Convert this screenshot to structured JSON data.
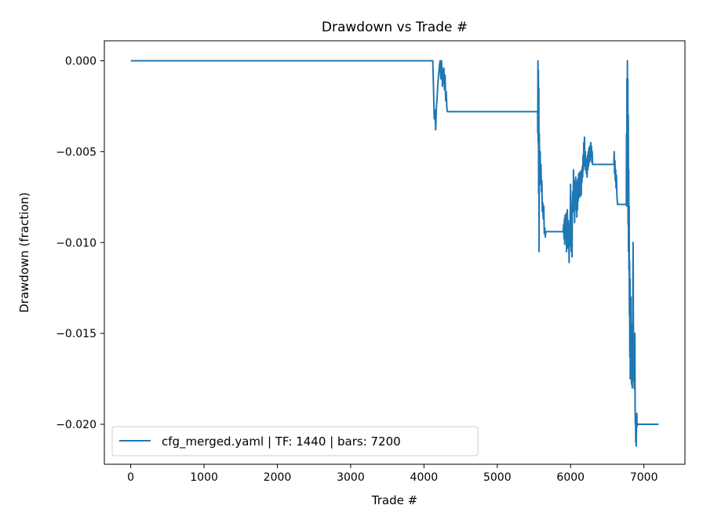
{
  "chart_data": {
    "type": "line",
    "title": "Drawdown vs Trade #",
    "xlabel": "Trade #",
    "ylabel": "Drawdown (fraction)",
    "xlim": [
      -360,
      7560
    ],
    "ylim": [
      -0.0222,
      0.0011
    ],
    "x_ticks": [
      0,
      1000,
      2000,
      3000,
      4000,
      5000,
      6000,
      7000
    ],
    "x_tick_labels": [
      "0",
      "1000",
      "2000",
      "3000",
      "4000",
      "5000",
      "6000",
      "7000"
    ],
    "y_ticks": [
      0.0,
      -0.005,
      -0.01,
      -0.015,
      -0.02
    ],
    "y_tick_labels": [
      "0.000",
      "−0.005",
      "−0.010",
      "−0.015",
      "−0.020"
    ],
    "grid": false,
    "legend_position": "lower-left",
    "series": [
      {
        "name": "cfg_merged.yaml | TF: 1440 | bars: 7200",
        "color": "#1f77b4",
        "points": [
          [
            0,
            0.0
          ],
          [
            4120,
            0.0
          ],
          [
            4130,
            -0.0015
          ],
          [
            4140,
            -0.0032
          ],
          [
            4150,
            -0.0027
          ],
          [
            4160,
            -0.0038
          ],
          [
            4170,
            -0.0025
          ],
          [
            4180,
            -0.002
          ],
          [
            4190,
            -0.0012
          ],
          [
            4200,
            -0.0008
          ],
          [
            4210,
            -0.0003
          ],
          [
            4220,
            0.0
          ],
          [
            4225,
            -0.0006
          ],
          [
            4232,
            -0.001
          ],
          [
            4238,
            0.0
          ],
          [
            4245,
            -0.0004
          ],
          [
            4252,
            -0.0014
          ],
          [
            4258,
            -0.0005
          ],
          [
            4265,
            -0.0012
          ],
          [
            4272,
            -0.0004
          ],
          [
            4280,
            -0.0016
          ],
          [
            4288,
            -0.0008
          ],
          [
            4296,
            -0.0022
          ],
          [
            4304,
            -0.0017
          ],
          [
            4312,
            -0.0026
          ],
          [
            4320,
            -0.0028
          ],
          [
            5550,
            -0.0028
          ],
          [
            5552,
            -0.004
          ],
          [
            5555,
            0.0
          ],
          [
            5558,
            -0.0045
          ],
          [
            5561,
            -0.0005
          ],
          [
            5564,
            -0.0073
          ],
          [
            5567,
            -0.0015
          ],
          [
            5570,
            -0.0105
          ],
          [
            5573,
            -0.004
          ],
          [
            5576,
            -0.0055
          ],
          [
            5580,
            -0.0068
          ],
          [
            5585,
            -0.005
          ],
          [
            5590,
            -0.0065
          ],
          [
            5596,
            -0.0057
          ],
          [
            5602,
            -0.0072
          ],
          [
            5608,
            -0.0066
          ],
          [
            5614,
            -0.0083
          ],
          [
            5620,
            -0.0078
          ],
          [
            5627,
            -0.0087
          ],
          [
            5634,
            -0.008
          ],
          [
            5641,
            -0.0095
          ],
          [
            5648,
            -0.0092
          ],
          [
            5655,
            -0.0097
          ],
          [
            5662,
            -0.0094
          ],
          [
            5900,
            -0.0094
          ],
          [
            5905,
            -0.009
          ],
          [
            5910,
            -0.0098
          ],
          [
            5915,
            -0.0087
          ],
          [
            5920,
            -0.0101
          ],
          [
            5925,
            -0.0085
          ],
          [
            5930,
            -0.0093
          ],
          [
            5935,
            -0.0095
          ],
          [
            5940,
            -0.0084
          ],
          [
            5945,
            -0.0105
          ],
          [
            5950,
            -0.0097
          ],
          [
            5955,
            -0.0082
          ],
          [
            5960,
            -0.009
          ],
          [
            5965,
            -0.0103
          ],
          [
            5970,
            -0.0088
          ],
          [
            5975,
            -0.0096
          ],
          [
            5980,
            -0.0111
          ],
          [
            5985,
            -0.0094
          ],
          [
            5990,
            -0.0102
          ],
          [
            5995,
            -0.0085
          ],
          [
            6000,
            -0.0068
          ],
          [
            6005,
            -0.009
          ],
          [
            6010,
            -0.0105
          ],
          [
            6015,
            -0.008
          ],
          [
            6020,
            -0.0108
          ],
          [
            6025,
            -0.0078
          ],
          [
            6030,
            -0.0072
          ],
          [
            6035,
            -0.0083
          ],
          [
            6040,
            -0.006
          ],
          [
            6045,
            -0.0081
          ],
          [
            6050,
            -0.0066
          ],
          [
            6055,
            -0.0089
          ],
          [
            6060,
            -0.007
          ],
          [
            6065,
            -0.0082
          ],
          [
            6070,
            -0.0064
          ],
          [
            6075,
            -0.008
          ],
          [
            6080,
            -0.0073
          ],
          [
            6085,
            -0.0086
          ],
          [
            6090,
            -0.0066
          ],
          [
            6095,
            -0.0082
          ],
          [
            6100,
            -0.0065
          ],
          [
            6105,
            -0.0077
          ],
          [
            6110,
            -0.0062
          ],
          [
            6115,
            -0.0072
          ],
          [
            6120,
            -0.0066
          ],
          [
            6125,
            -0.0075
          ],
          [
            6130,
            -0.0061
          ],
          [
            6135,
            -0.007
          ],
          [
            6140,
            -0.0065
          ],
          [
            6145,
            -0.0074
          ],
          [
            6150,
            -0.006
          ],
          [
            6155,
            -0.0067
          ],
          [
            6160,
            -0.0058
          ],
          [
            6165,
            -0.0064
          ],
          [
            6170,
            -0.0052
          ],
          [
            6175,
            -0.006
          ],
          [
            6180,
            -0.0045
          ],
          [
            6185,
            -0.0055
          ],
          [
            6190,
            -0.0042
          ],
          [
            6195,
            -0.0058
          ],
          [
            6200,
            -0.005
          ],
          [
            6205,
            -0.006
          ],
          [
            6210,
            -0.0054
          ],
          [
            6215,
            -0.0062
          ],
          [
            6220,
            -0.0055
          ],
          [
            6225,
            -0.0064
          ],
          [
            6230,
            -0.0052
          ],
          [
            6235,
            -0.006
          ],
          [
            6240,
            -0.005
          ],
          [
            6245,
            -0.0058
          ],
          [
            6250,
            -0.0048
          ],
          [
            6255,
            -0.0056
          ],
          [
            6260,
            -0.0047
          ],
          [
            6265,
            -0.0055
          ],
          [
            6270,
            -0.0049
          ],
          [
            6275,
            -0.0045
          ],
          [
            6280,
            -0.0052
          ],
          [
            6285,
            -0.0047
          ],
          [
            6290,
            -0.0056
          ],
          [
            6295,
            -0.005
          ],
          [
            6300,
            -0.0057
          ],
          [
            6590,
            -0.0057
          ],
          [
            6595,
            -0.005
          ],
          [
            6600,
            -0.0062
          ],
          [
            6605,
            -0.0055
          ],
          [
            6610,
            -0.0066
          ],
          [
            6615,
            -0.006
          ],
          [
            6620,
            -0.007
          ],
          [
            6625,
            -0.0063
          ],
          [
            6632,
            -0.0074
          ],
          [
            6640,
            -0.0079
          ],
          [
            6760,
            -0.0079
          ],
          [
            6763,
            -0.004
          ],
          [
            6766,
            -0.008
          ],
          [
            6769,
            -0.001
          ],
          [
            6772,
            -0.006
          ],
          [
            6775,
            0.0
          ],
          [
            6778,
            -0.005
          ],
          [
            6781,
            -0.001
          ],
          [
            6784,
            -0.009
          ],
          [
            6787,
            -0.003
          ],
          [
            6790,
            -0.0105
          ],
          [
            6793,
            -0.006
          ],
          [
            6796,
            -0.0115
          ],
          [
            6799,
            -0.008
          ],
          [
            6802,
            -0.014
          ],
          [
            6805,
            -0.011
          ],
          [
            6808,
            -0.0163
          ],
          [
            6811,
            -0.012
          ],
          [
            6814,
            -0.0175
          ],
          [
            6817,
            -0.014
          ],
          [
            6820,
            -0.0158
          ],
          [
            6823,
            -0.013
          ],
          [
            6826,
            -0.0168
          ],
          [
            6829,
            -0.015
          ],
          [
            6832,
            -0.0178
          ],
          [
            6835,
            -0.0145
          ],
          [
            6838,
            -0.0162
          ],
          [
            6841,
            -0.018
          ],
          [
            6844,
            -0.0155
          ],
          [
            6847,
            -0.017
          ],
          [
            6850,
            -0.012
          ],
          [
            6853,
            -0.01
          ],
          [
            6856,
            -0.0138
          ],
          [
            6859,
            -0.016
          ],
          [
            6862,
            -0.0176
          ],
          [
            6865,
            -0.0168
          ],
          [
            6868,
            -0.018
          ],
          [
            6871,
            -0.0175
          ],
          [
            6874,
            -0.0181
          ],
          [
            6877,
            -0.015
          ],
          [
            6880,
            -0.019
          ],
          [
            6883,
            -0.02
          ],
          [
            6886,
            -0.0196
          ],
          [
            6889,
            -0.021
          ],
          [
            6892,
            -0.0205
          ],
          [
            6895,
            -0.0212
          ],
          [
            6898,
            -0.0205
          ],
          [
            6901,
            -0.02
          ],
          [
            6904,
            -0.0194
          ],
          [
            6907,
            -0.0201
          ],
          [
            6912,
            -0.02
          ],
          [
            7200,
            -0.02
          ]
        ]
      }
    ]
  }
}
